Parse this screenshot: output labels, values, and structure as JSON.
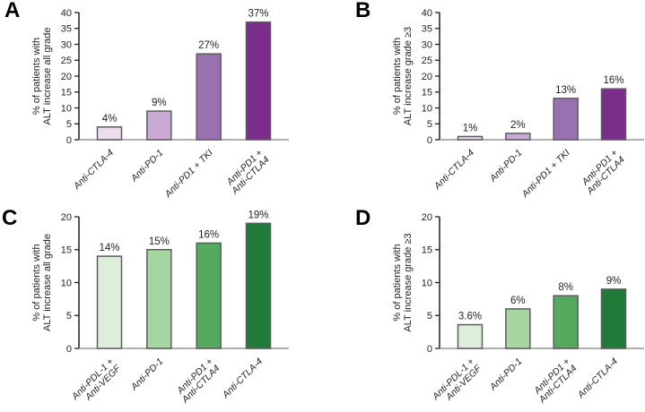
{
  "figure": {
    "background": "#ffffff",
    "bar_stroke": "#5d5d60",
    "axis_color": "#231f20",
    "baseline_color": "#949598",
    "text_color": "#231f20"
  },
  "chart_data": [
    {
      "type": "bar",
      "panel": "A",
      "title": "",
      "categories": [
        "Anti-CTLA-4",
        "Anti-PD-1",
        "Anti-PD1 + TKI",
        "Anti-PD1 + Anti-CTLA4"
      ],
      "category_lines": [
        [
          "Anti-CTLA-4"
        ],
        [
          "Anti-PD-1"
        ],
        [
          "Anti-PD1 + TKI"
        ],
        [
          "Anti-PD1 +",
          "Anti-CTLA4"
        ]
      ],
      "values": [
        4,
        9,
        27,
        37
      ],
      "value_labels": [
        "4%",
        "9%",
        "27%",
        "37%"
      ],
      "xlabel": "",
      "ylabel": "% of patients with ALT increase all grade",
      "ylabel_lines": [
        "% of patients with",
        "ALT increase all grade"
      ],
      "ylim": [
        0,
        40
      ],
      "ytick_step": 5,
      "grid": false,
      "legend": "none",
      "bar_colors": [
        "#ecdcec",
        "#c9aad5",
        "#9a71b0",
        "#7b2d8b"
      ]
    },
    {
      "type": "bar",
      "panel": "B",
      "title": "",
      "categories": [
        "Anti-CTLA-4",
        "Anti-PD-1",
        "Anti-PD1 + TKI",
        "Anti-PD1 + Anti-CTLA4"
      ],
      "category_lines": [
        [
          "Anti-CTLA-4"
        ],
        [
          "Anti-PD-1"
        ],
        [
          "Anti-PD1 + TKI"
        ],
        [
          "Anti-PD1 +",
          "Anti-CTLA4"
        ]
      ],
      "values": [
        1,
        2,
        13,
        16
      ],
      "value_labels": [
        "1%",
        "2%",
        "13%",
        "16%"
      ],
      "xlabel": "",
      "ylabel": "% of patients with ALT increase grade ≥3",
      "ylabel_lines": [
        "% of patients with",
        "ALT increase grade ≥3"
      ],
      "ylim": [
        0,
        40
      ],
      "ytick_step": 5,
      "grid": false,
      "legend": "none",
      "bar_colors": [
        "#ecdcec",
        "#c9aad5",
        "#9a71b0",
        "#7b2d8b"
      ]
    },
    {
      "type": "bar",
      "panel": "C",
      "title": "",
      "categories": [
        "Anti-PDL-1 + Anti-VEGF",
        "Anti-PD-1",
        "Anti-PD1 + Anti-CTLA4",
        "Anti-CTLA-4"
      ],
      "category_lines": [
        [
          "Anti-PDL-1 +",
          "Anti-VEGF"
        ],
        [
          "Anti-PD-1"
        ],
        [
          "Anti-PD1 +",
          "Anti-CTLA4"
        ],
        [
          "Anti-CTLA-4"
        ]
      ],
      "values": [
        14,
        15,
        16,
        19
      ],
      "value_labels": [
        "14%",
        "15%",
        "16%",
        "19%"
      ],
      "xlabel": "",
      "ylabel": "% of patients with ALT increase all grade",
      "ylabel_lines": [
        "% of patients with",
        "ALT increase all grade"
      ],
      "ylim": [
        0,
        20
      ],
      "ytick_step": 5,
      "grid": false,
      "legend": "none",
      "bar_colors": [
        "#ddefdb",
        "#a6d69f",
        "#54a95f",
        "#1e7b38"
      ]
    },
    {
      "type": "bar",
      "panel": "D",
      "title": "",
      "categories": [
        "Anti-PDL-1 + Anti-VEGF",
        "Anti-PD-1",
        "Anti-PD1 + Anti-CTLA4",
        "Anti-CTLA-4"
      ],
      "category_lines": [
        [
          "Anti-PDL-1 +",
          "Anti-VEGF"
        ],
        [
          "Anti-PD-1"
        ],
        [
          "Anti-PD1 +",
          "Anti-CTLA4"
        ],
        [
          "Anti-CTLA-4"
        ]
      ],
      "values": [
        3.6,
        6,
        8,
        9
      ],
      "value_labels": [
        "3.6%",
        "6%",
        "8%",
        "9%"
      ],
      "xlabel": "",
      "ylabel": "% of patients with ALT increase grade ≥3",
      "ylabel_lines": [
        "% of patients with",
        "ALT increase grade ≥3"
      ],
      "ylim": [
        0,
        20
      ],
      "ytick_step": 5,
      "grid": false,
      "legend": "none",
      "bar_colors": [
        "#ddefdb",
        "#a6d69f",
        "#54a95f",
        "#1e7b38"
      ]
    }
  ]
}
